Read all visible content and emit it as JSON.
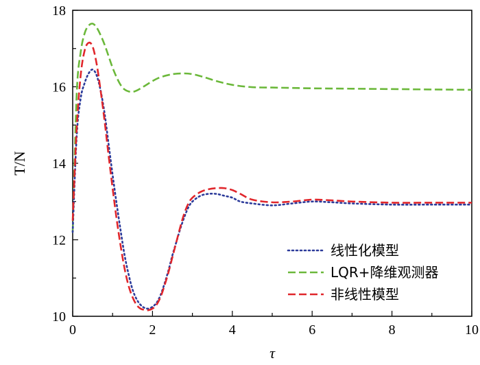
{
  "chart_data": {
    "type": "line",
    "title": "",
    "xlabel": "τ",
    "ylabel": "T/N",
    "xlim": [
      0,
      10
    ],
    "ylim": [
      10,
      18
    ],
    "xticks": [
      0,
      2,
      4,
      6,
      8,
      10
    ],
    "yticks": [
      10,
      12,
      14,
      16,
      18
    ],
    "grid": false,
    "legend_position": "bottom-right",
    "series": [
      {
        "name": "线性化模型",
        "color": "#2b3a9a",
        "style": "dotted",
        "x": [
          0,
          0.1,
          0.2,
          0.3,
          0.4,
          0.5,
          0.6,
          0.7,
          0.8,
          0.9,
          1.0,
          1.1,
          1.2,
          1.3,
          1.4,
          1.5,
          1.6,
          1.7,
          1.8,
          1.9,
          2.0,
          2.1,
          2.2,
          2.3,
          2.4,
          2.5,
          2.6,
          2.7,
          2.8,
          2.9,
          3.0,
          3.2,
          3.4,
          3.6,
          3.8,
          4.0,
          4.2,
          4.5,
          5.0,
          5.5,
          6.0,
          6.5,
          7.0,
          8.0,
          9.0,
          10.0
        ],
        "y": [
          12.2,
          14.7,
          15.7,
          16.1,
          16.35,
          16.45,
          16.3,
          15.9,
          15.3,
          14.5,
          13.7,
          12.95,
          12.25,
          11.6,
          11.1,
          10.7,
          10.45,
          10.3,
          10.22,
          10.2,
          10.25,
          10.35,
          10.55,
          10.85,
          11.2,
          11.6,
          11.95,
          12.3,
          12.6,
          12.85,
          13.0,
          13.15,
          13.2,
          13.2,
          13.15,
          13.1,
          13.0,
          12.95,
          12.9,
          12.95,
          13.0,
          12.98,
          12.95,
          12.92,
          12.92,
          12.92
        ]
      },
      {
        "name": "LQR+降维观测器",
        "color": "#6bb83a",
        "style": "dashed",
        "x": [
          0,
          0.1,
          0.2,
          0.3,
          0.4,
          0.5,
          0.6,
          0.7,
          0.8,
          0.9,
          1.0,
          1.1,
          1.2,
          1.3,
          1.4,
          1.5,
          1.6,
          1.8,
          2.0,
          2.2,
          2.5,
          2.8,
          3.0,
          3.3,
          3.6,
          4.0,
          4.5,
          5.0,
          5.5,
          6.0,
          7.0,
          8.0,
          9.0,
          10.0
        ],
        "y": [
          12.2,
          15.8,
          16.9,
          17.4,
          17.6,
          17.65,
          17.55,
          17.35,
          17.1,
          16.8,
          16.5,
          16.25,
          16.05,
          15.93,
          15.88,
          15.87,
          15.9,
          16.02,
          16.15,
          16.25,
          16.33,
          16.35,
          16.33,
          16.25,
          16.15,
          16.05,
          15.99,
          15.98,
          15.97,
          15.96,
          15.95,
          15.94,
          15.93,
          15.92
        ]
      },
      {
        "name": "非线性模型",
        "color": "#e0262b",
        "style": "dashed",
        "x": [
          0,
          0.1,
          0.2,
          0.3,
          0.4,
          0.5,
          0.6,
          0.7,
          0.8,
          0.9,
          1.0,
          1.1,
          1.2,
          1.3,
          1.4,
          1.5,
          1.6,
          1.7,
          1.8,
          1.9,
          2.0,
          2.1,
          2.2,
          2.3,
          2.4,
          2.5,
          2.6,
          2.7,
          2.8,
          2.9,
          3.0,
          3.2,
          3.4,
          3.6,
          3.8,
          4.0,
          4.2,
          4.5,
          5.0,
          5.5,
          6.0,
          6.5,
          7.0,
          8.0,
          9.0,
          10.0
        ],
        "y": [
          12.5,
          14.9,
          16.3,
          16.95,
          17.15,
          17.05,
          16.6,
          15.9,
          15.1,
          14.2,
          13.35,
          12.55,
          11.85,
          11.25,
          10.8,
          10.5,
          10.3,
          10.2,
          10.17,
          10.16,
          10.2,
          10.3,
          10.5,
          10.8,
          11.15,
          11.55,
          11.95,
          12.35,
          12.7,
          12.95,
          13.1,
          13.25,
          13.32,
          13.35,
          13.35,
          13.3,
          13.2,
          13.05,
          12.98,
          13.0,
          13.05,
          13.03,
          13.0,
          12.97,
          12.97,
          12.97
        ]
      }
    ]
  }
}
